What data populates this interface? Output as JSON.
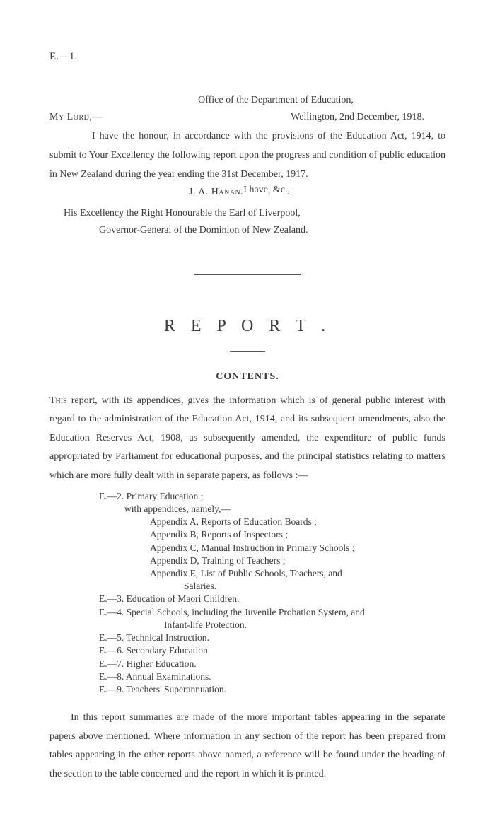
{
  "doc_id": "E.—1.",
  "letter": {
    "office": "Office of the Department of Education,",
    "salutation_sc": "My Lord,",
    "salutation_tail": "—",
    "date": "Wellington, 2nd December, 1918.",
    "body": "I have the honour, in accordance with the provisions of the Education Act, 1914, to submit to Your Excellency the following report upon the progress and condition of public education in New Zealand during the year ending the 31st December, 1917.",
    "closing": "I have, &c.,",
    "signature": "J. A. Hanan.",
    "addressee_line1": "His Excellency the Right Honourable the Earl of Liverpool,",
    "addressee_line2": "Governor-General of the Dominion of New Zealand."
  },
  "report": {
    "title": "R E P O R T .",
    "contents_heading": "CONTENTS.",
    "intro_dropcap": "This",
    "intro_rest": " report, with its appendices, gives the information which is of general public interest with regard to the administration of the Education Act, 1914, and its subsequent amendments, also the Education Reserves Act, 1908, as subsequently amended, the expenditure of public funds appropriated by Parliament for educational purposes, and the principal statistics relating to matters which are more fully dealt with in separate papers, as follows :—",
    "toc": {
      "e2": "E.—2. Primary Education ;",
      "e2_sub": "with appendices, namely,—",
      "appA": "Appendix A, Reports of Education Boards ;",
      "appB": "Appendix B, Reports of Inspectors ;",
      "appC": "Appendix C, Manual Instruction in Primary Schools ;",
      "appD": "Appendix D, Training of Teachers ;",
      "appE": "Appendix E, List of Public Schools, Teachers, and",
      "appE_cont": "Salaries.",
      "e3": "E.—3. Education of Maori Children.",
      "e4": "E.—4. Special Schools, including the Juvenile Probation System, and",
      "e4_cont": "Infant-life Protection.",
      "e5": "E.—5. Technical Instruction.",
      "e6": "E.—6. Secondary Education.",
      "e7": "E.—7. Higher Education.",
      "e8": "E.—8. Annual Examinations.",
      "e9": "E.—9. Teachers' Superannuation."
    },
    "closing_para": "In this report summaries are made of the more important tables appearing in the separate papers above mentioned. Where information in any section of the report has been prepared from tables appearing in the other reports above named, a reference will be found under the heading of the section to the table concerned and the report in which it is printed."
  }
}
